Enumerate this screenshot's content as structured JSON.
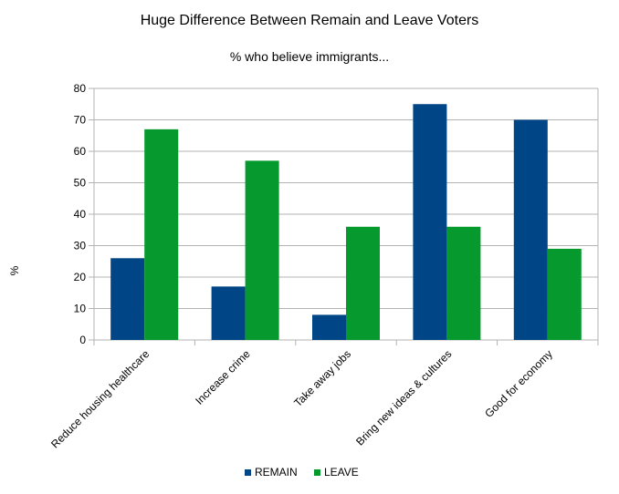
{
  "chart_data": {
    "type": "bar",
    "title": "Huge Difference Between Remain and Leave Voters",
    "subtitle": "% who believe immigrants...",
    "ylabel": "%",
    "xlabel": "",
    "ylim": [
      0,
      80
    ],
    "yticks": [
      "0",
      "10",
      "20",
      "30",
      "40",
      "50",
      "60",
      "70",
      "80"
    ],
    "grid": true,
    "legend_position": "bottom",
    "categories": [
      "Reduce housing healthcare",
      "Increase crime",
      "Take away jobs",
      "Bring new ideas & cultures",
      "Good for economy"
    ],
    "series": [
      {
        "name": "REMAIN",
        "color": "#004586",
        "values": [
          26,
          17,
          8,
          75,
          70
        ]
      },
      {
        "name": "LEAVE",
        "color": "#069a2e",
        "values": [
          67,
          57,
          36,
          36,
          29
        ]
      }
    ]
  }
}
